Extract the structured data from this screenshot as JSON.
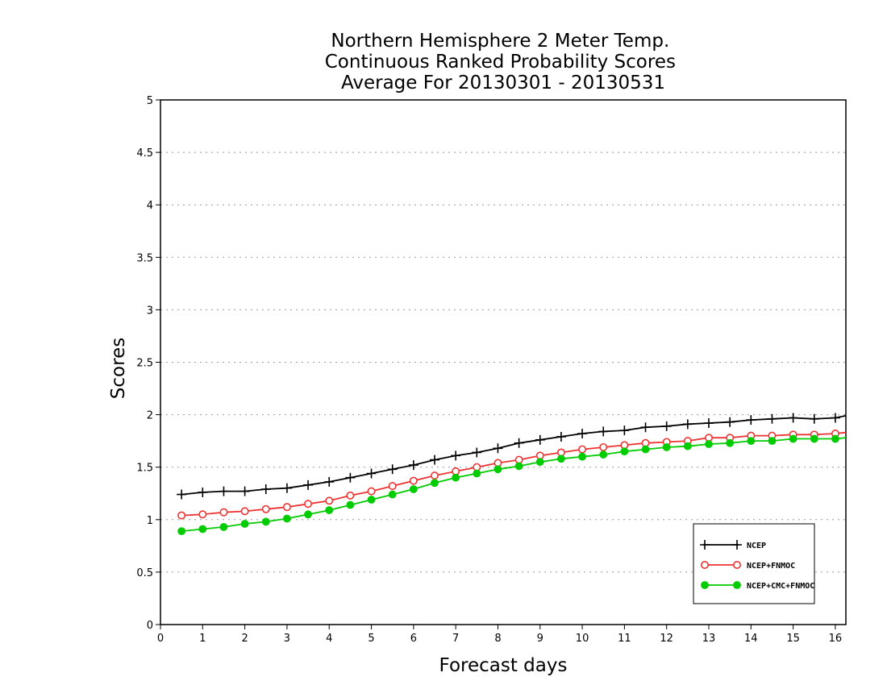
{
  "chart_data": {
    "type": "line",
    "title_lines": [
      "Northern Hemisphere 2 Meter Temp.",
      "Continuous Ranked Probability Scores",
      "Average For 20130301 - 20130531"
    ],
    "xlabel": "Forecast days",
    "ylabel": "Scores",
    "xlim": [
      0,
      16.25
    ],
    "ylim": [
      0,
      5
    ],
    "xticks": [
      0,
      1,
      2,
      3,
      4,
      5,
      6,
      7,
      8,
      9,
      10,
      11,
      12,
      13,
      14,
      15,
      16
    ],
    "yticks": [
      0,
      0.5,
      1,
      1.5,
      2,
      2.5,
      3,
      3.5,
      4,
      4.5,
      5
    ],
    "ytick_labels": [
      "0",
      "0.5",
      "1",
      "1.5",
      "2",
      "2.5",
      "3",
      "3.5",
      "4",
      "4.5",
      "5"
    ],
    "grid": "horizontal dotted",
    "legend_position": "bottom-right",
    "x": [
      0.5,
      1,
      1.5,
      2,
      2.5,
      3,
      3.5,
      4,
      4.5,
      5,
      5.5,
      6,
      6.5,
      7,
      7.5,
      8,
      8.5,
      9,
      9.5,
      10,
      10.5,
      11,
      11.5,
      12,
      12.5,
      13,
      13.5,
      14,
      14.5,
      15,
      15.5,
      16,
      16.25
    ],
    "series": [
      {
        "name": "NCEP",
        "color": "#000000",
        "marker": "plus",
        "values": [
          1.24,
          1.26,
          1.27,
          1.27,
          1.29,
          1.3,
          1.33,
          1.36,
          1.4,
          1.44,
          1.48,
          1.52,
          1.57,
          1.61,
          1.64,
          1.68,
          1.73,
          1.76,
          1.79,
          1.82,
          1.84,
          1.85,
          1.88,
          1.89,
          1.91,
          1.92,
          1.93,
          1.95,
          1.96,
          1.97,
          1.96,
          1.97,
          1.99
        ]
      },
      {
        "name": "NCEP+FNMOC",
        "color": "#ee3333",
        "marker": "open-circle",
        "values": [
          1.04,
          1.05,
          1.07,
          1.08,
          1.1,
          1.12,
          1.15,
          1.18,
          1.23,
          1.27,
          1.32,
          1.37,
          1.42,
          1.46,
          1.5,
          1.54,
          1.57,
          1.61,
          1.64,
          1.67,
          1.69,
          1.71,
          1.73,
          1.74,
          1.75,
          1.78,
          1.78,
          1.8,
          1.8,
          1.81,
          1.81,
          1.82,
          1.83
        ]
      },
      {
        "name": "NCEP+CMC+FNMOC",
        "color": "#00cc00",
        "marker": "filled-circle",
        "values": [
          0.89,
          0.91,
          0.93,
          0.96,
          0.98,
          1.01,
          1.05,
          1.09,
          1.14,
          1.19,
          1.24,
          1.29,
          1.35,
          1.4,
          1.44,
          1.48,
          1.51,
          1.55,
          1.58,
          1.6,
          1.62,
          1.65,
          1.67,
          1.69,
          1.7,
          1.72,
          1.73,
          1.75,
          1.75,
          1.77,
          1.77,
          1.77,
          1.78
        ]
      }
    ]
  }
}
